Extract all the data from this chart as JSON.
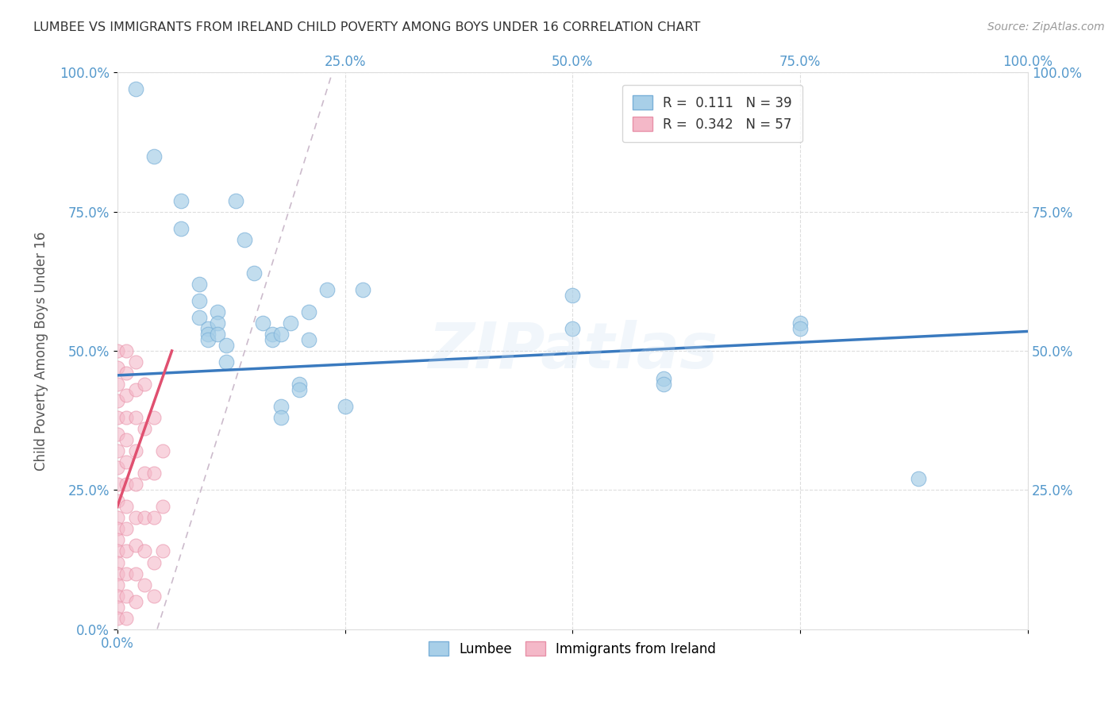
{
  "title": "LUMBEE VS IMMIGRANTS FROM IRELAND CHILD POVERTY AMONG BOYS UNDER 16 CORRELATION CHART",
  "source": "Source: ZipAtlas.com",
  "ylabel": "Child Poverty Among Boys Under 16",
  "xlabel": "",
  "watermark": "ZIPatlas",
  "lumbee_R": 0.111,
  "lumbee_N": 39,
  "ireland_R": 0.342,
  "ireland_N": 57,
  "lumbee_color": "#a8cfe8",
  "ireland_color": "#f4b8c8",
  "lumbee_trend_color": "#3a7abf",
  "ireland_trend_color": "#e05070",
  "dashed_line_color": "#ccbbcc",
  "background_color": "#ffffff",
  "grid_color": "#dddddd",
  "title_color": "#333333",
  "axis_label_color": "#555555",
  "tick_label_color": "#5599cc",
  "lumbee_points": [
    [
      0.02,
      0.97
    ],
    [
      0.04,
      0.85
    ],
    [
      0.07,
      0.77
    ],
    [
      0.07,
      0.72
    ],
    [
      0.09,
      0.62
    ],
    [
      0.09,
      0.59
    ],
    [
      0.09,
      0.56
    ],
    [
      0.1,
      0.54
    ],
    [
      0.1,
      0.53
    ],
    [
      0.1,
      0.52
    ],
    [
      0.11,
      0.57
    ],
    [
      0.11,
      0.55
    ],
    [
      0.11,
      0.53
    ],
    [
      0.12,
      0.51
    ],
    [
      0.12,
      0.48
    ],
    [
      0.13,
      0.77
    ],
    [
      0.14,
      0.7
    ],
    [
      0.15,
      0.64
    ],
    [
      0.16,
      0.55
    ],
    [
      0.17,
      0.53
    ],
    [
      0.17,
      0.52
    ],
    [
      0.18,
      0.53
    ],
    [
      0.18,
      0.4
    ],
    [
      0.18,
      0.38
    ],
    [
      0.19,
      0.55
    ],
    [
      0.2,
      0.44
    ],
    [
      0.2,
      0.43
    ],
    [
      0.21,
      0.57
    ],
    [
      0.21,
      0.52
    ],
    [
      0.23,
      0.61
    ],
    [
      0.25,
      0.4
    ],
    [
      0.27,
      0.61
    ],
    [
      0.5,
      0.6
    ],
    [
      0.5,
      0.54
    ],
    [
      0.6,
      0.45
    ],
    [
      0.6,
      0.44
    ],
    [
      0.75,
      0.55
    ],
    [
      0.75,
      0.54
    ],
    [
      0.88,
      0.27
    ]
  ],
  "ireland_points": [
    [
      0.0,
      0.5
    ],
    [
      0.0,
      0.47
    ],
    [
      0.0,
      0.44
    ],
    [
      0.0,
      0.41
    ],
    [
      0.0,
      0.38
    ],
    [
      0.0,
      0.35
    ],
    [
      0.0,
      0.32
    ],
    [
      0.0,
      0.29
    ],
    [
      0.0,
      0.26
    ],
    [
      0.0,
      0.23
    ],
    [
      0.0,
      0.2
    ],
    [
      0.0,
      0.18
    ],
    [
      0.0,
      0.16
    ],
    [
      0.0,
      0.14
    ],
    [
      0.0,
      0.12
    ],
    [
      0.0,
      0.1
    ],
    [
      0.0,
      0.08
    ],
    [
      0.0,
      0.06
    ],
    [
      0.0,
      0.04
    ],
    [
      0.0,
      0.02
    ],
    [
      0.01,
      0.5
    ],
    [
      0.01,
      0.46
    ],
    [
      0.01,
      0.42
    ],
    [
      0.01,
      0.38
    ],
    [
      0.01,
      0.34
    ],
    [
      0.01,
      0.3
    ],
    [
      0.01,
      0.26
    ],
    [
      0.01,
      0.22
    ],
    [
      0.01,
      0.18
    ],
    [
      0.01,
      0.14
    ],
    [
      0.01,
      0.1
    ],
    [
      0.01,
      0.06
    ],
    [
      0.01,
      0.02
    ],
    [
      0.02,
      0.48
    ],
    [
      0.02,
      0.43
    ],
    [
      0.02,
      0.38
    ],
    [
      0.02,
      0.32
    ],
    [
      0.02,
      0.26
    ],
    [
      0.02,
      0.2
    ],
    [
      0.02,
      0.15
    ],
    [
      0.02,
      0.1
    ],
    [
      0.02,
      0.05
    ],
    [
      0.03,
      0.44
    ],
    [
      0.03,
      0.36
    ],
    [
      0.03,
      0.28
    ],
    [
      0.03,
      0.2
    ],
    [
      0.03,
      0.14
    ],
    [
      0.03,
      0.08
    ],
    [
      0.04,
      0.38
    ],
    [
      0.04,
      0.28
    ],
    [
      0.04,
      0.2
    ],
    [
      0.04,
      0.12
    ],
    [
      0.04,
      0.06
    ],
    [
      0.05,
      0.32
    ],
    [
      0.05,
      0.22
    ],
    [
      0.05,
      0.14
    ]
  ],
  "xlim": [
    0.0,
    1.0
  ],
  "ylim": [
    0.0,
    1.0
  ],
  "xticks": [
    0.0,
    0.25,
    0.5,
    0.75,
    1.0
  ],
  "yticks": [
    0.0,
    0.25,
    0.5,
    0.75,
    1.0
  ],
  "xtick_labels_left": [
    "0.0%",
    "",
    "",
    "",
    ""
  ],
  "xtick_labels_right": [
    "",
    "25.0%",
    "50.0%",
    "75.0%",
    "100.0%"
  ],
  "ytick_labels_left": [
    "0.0%",
    "25.0%",
    "50.0%",
    "75.0%",
    "100.0%"
  ],
  "ytick_labels_right": [
    "",
    "25.0%",
    "50.0%",
    "75.0%",
    "100.0%"
  ],
  "lumbee_trend_y0": 0.456,
  "lumbee_trend_y1": 0.535,
  "ireland_trend_x0": 0.0,
  "ireland_trend_y0": 0.22,
  "ireland_trend_x1": 0.06,
  "ireland_trend_y1": 0.5
}
